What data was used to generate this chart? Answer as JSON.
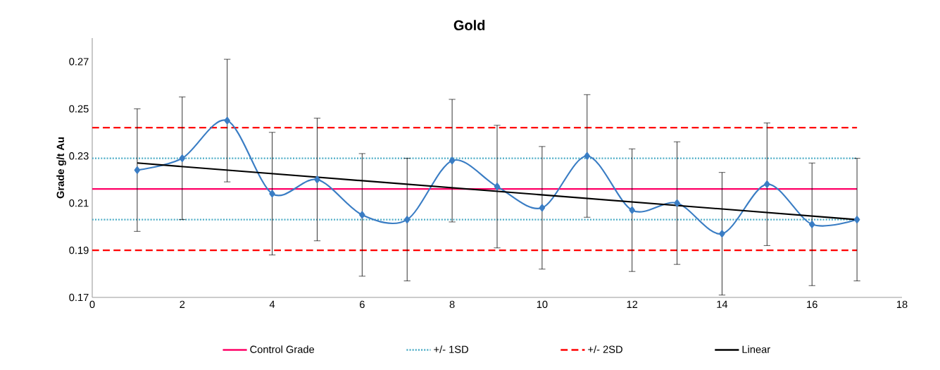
{
  "chart_data": {
    "type": "line",
    "title": "Gold",
    "ylabel": "Grade g/t Au",
    "xlim": [
      0,
      18
    ],
    "xticks": [
      0,
      2,
      4,
      6,
      8,
      10,
      12,
      14,
      16,
      18
    ],
    "ylim": [
      0.17,
      0.28
    ],
    "yticks": [
      0.17,
      0.19,
      0.21,
      0.23,
      0.25,
      0.27
    ],
    "grid": false,
    "legend": "bottom",
    "series": [
      {
        "name": "Control Grade",
        "color": "#ff0066",
        "line_style": "solid",
        "marker": "none",
        "x": [
          0,
          17
        ],
        "values": [
          0.216,
          0.216
        ]
      },
      {
        "name": "+/- 1SD",
        "color": "#4bacc6",
        "line_style": "dotted",
        "marker": "none",
        "x": [
          0,
          17
        ],
        "values": [
          0.229,
          0.229
        ]
      },
      {
        "color": "#4bacc6",
        "line_style": "dotted",
        "marker": "none",
        "x": [
          0,
          17
        ],
        "values": [
          0.203,
          0.203
        ]
      },
      {
        "name": "+/- 2SD",
        "color": "#ff0000",
        "line_style": "dashed",
        "marker": "none",
        "x": [
          0,
          17
        ],
        "values": [
          0.242,
          0.242
        ]
      },
      {
        "color": "#ff0000",
        "line_style": "dashed",
        "marker": "none",
        "x": [
          0,
          17
        ],
        "values": [
          0.19,
          0.19
        ]
      },
      {
        "color": "#3a7dc4",
        "line_style": "solid",
        "marker": "diamond",
        "x": [
          1,
          2,
          3,
          4,
          5,
          6,
          7,
          8,
          9,
          10,
          11,
          12,
          13,
          14,
          15,
          16,
          17
        ],
        "values": [
          0.224,
          0.229,
          0.245,
          0.214,
          0.22,
          0.205,
          0.203,
          0.228,
          0.217,
          0.208,
          0.23,
          0.207,
          0.21,
          0.197,
          0.218,
          0.201,
          0.203
        ],
        "errors": [
          0.026,
          0.026,
          0.026,
          0.026,
          0.026,
          0.026,
          0.026,
          0.026,
          0.026,
          0.026,
          0.026,
          0.026,
          0.026,
          0.026,
          0.026,
          0.026,
          0.026
        ]
      },
      {
        "name": "Linear",
        "color": "#000000",
        "line_style": "solid",
        "marker": "none",
        "x": [
          1,
          17
        ],
        "values": [
          0.227,
          0.203
        ]
      }
    ]
  }
}
